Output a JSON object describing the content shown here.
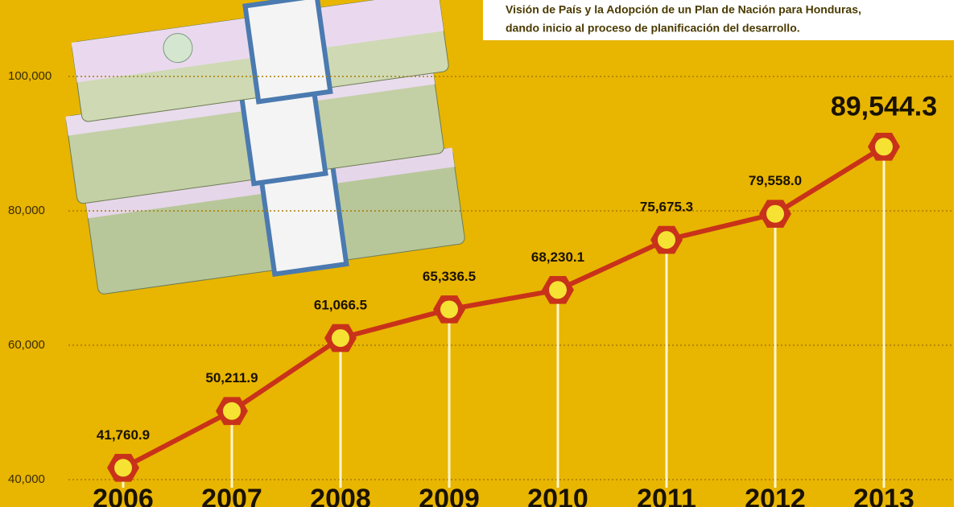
{
  "chart_data": {
    "type": "line",
    "annotations": [
      "Visión de País y la Adopción de un Plan de Nación para Honduras,",
      "dando inicio al proceso de planificación del desarrollo."
    ],
    "categories": [
      "2006",
      "2007",
      "2008",
      "2009",
      "2010",
      "2011",
      "2012",
      "2013"
    ],
    "values": [
      41760.9,
      50211.9,
      61066.5,
      65336.5,
      68230.1,
      75675.3,
      79558.0,
      89544.3
    ],
    "value_labels": [
      "41,760.9",
      "50,211.9",
      "61,066.5",
      "65,336.5",
      "68,230.1",
      "75,675.3",
      "79,558.0",
      "89,544.3"
    ],
    "color": "#c8321a",
    "ylim": [
      40000,
      100000
    ],
    "yticks": [
      {
        "value": 40000,
        "label": "40,000"
      },
      {
        "value": 60000,
        "label": "60,000"
      },
      {
        "value": 80000,
        "label": "80,000"
      },
      {
        "value": 100000,
        "label": "100,000"
      }
    ],
    "grid": true
  }
}
